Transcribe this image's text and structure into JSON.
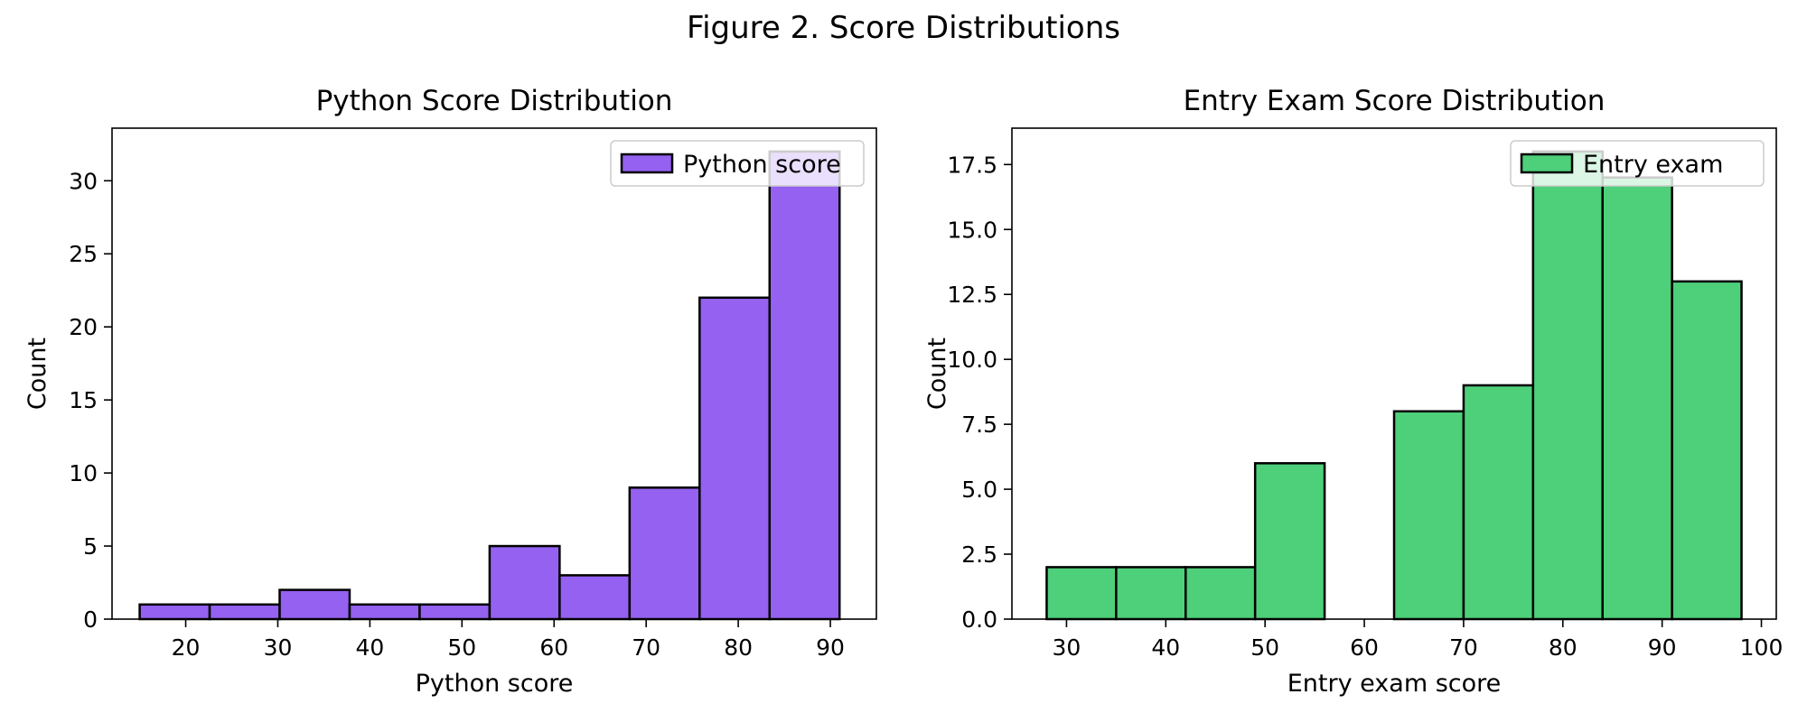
{
  "figure_title": "Figure 2. Score Distributions",
  "chart_data": [
    {
      "type": "bar",
      "title": "Python Score Distribution",
      "xlabel": "Python score",
      "ylabel": "Count",
      "xlim": [
        12,
        95
      ],
      "ylim": [
        0,
        33.6
      ],
      "xticks": [
        20,
        30,
        40,
        50,
        60,
        70,
        80,
        90
      ],
      "yticks": [
        0,
        5,
        10,
        15,
        20,
        25,
        30
      ],
      "ytick_labels": [
        "0",
        "5",
        "10",
        "15",
        "20",
        "25",
        "30"
      ],
      "bin_edges": [
        15,
        22.6,
        30.2,
        37.8,
        45.4,
        53,
        60.6,
        68.2,
        75.8,
        83.4,
        91
      ],
      "values": [
        1,
        1,
        2,
        1,
        1,
        5,
        3,
        9,
        22,
        32
      ],
      "legend": "Python score",
      "legend_position": "upper right",
      "color": "#9461f0",
      "edge_color": "#000000"
    },
    {
      "type": "bar",
      "title": "Entry Exam Score Distribution",
      "xlabel": "Entry exam score",
      "ylabel": "Count",
      "xlim": [
        24.5,
        101.5
      ],
      "ylim": [
        0,
        18.9
      ],
      "xticks": [
        30,
        40,
        50,
        60,
        70,
        80,
        90,
        100
      ],
      "yticks": [
        0,
        2.5,
        5,
        7.5,
        10,
        12.5,
        15,
        17.5
      ],
      "ytick_labels": [
        "0.0",
        "2.5",
        "5.0",
        "7.5",
        "10.0",
        "12.5",
        "15.0",
        "17.5"
      ],
      "bin_edges": [
        28,
        35,
        42,
        49,
        56,
        63,
        70,
        77,
        84,
        91,
        98
      ],
      "values": [
        2,
        2,
        2,
        6,
        0,
        8,
        9,
        18,
        17,
        13
      ],
      "legend": "Entry exam",
      "legend_position": "upper right",
      "color": "#4ecf7a",
      "edge_color": "#000000"
    }
  ]
}
